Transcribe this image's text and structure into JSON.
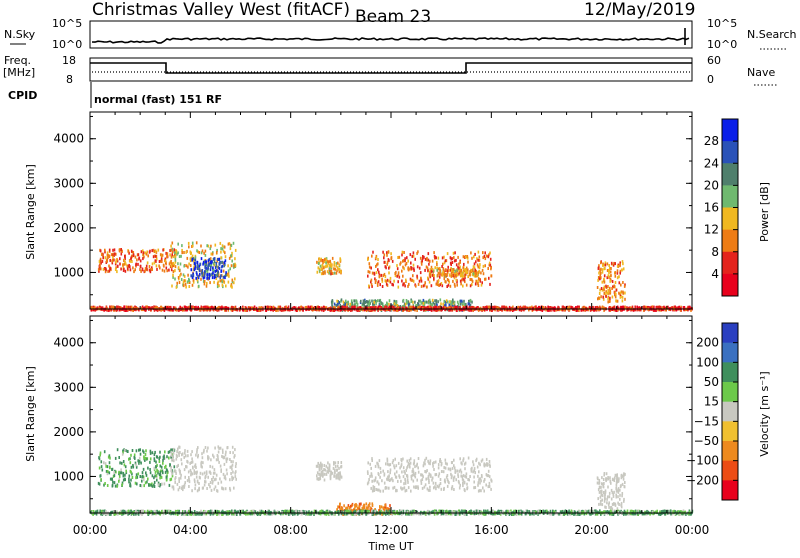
{
  "header": {
    "station": "Christmas Valley West (fitACF)",
    "beam": "Beam 23",
    "date": "12/May/2019"
  },
  "top_panels": {
    "nsky_label": "N.Sky",
    "nsky_ticks": [
      "10^5",
      "10^0"
    ],
    "nsearch_label": "N.Search",
    "nsearch_ticks": [
      "10^5",
      "10^0"
    ],
    "freq_label": "Freq.",
    "freq_unit": "[MHz]",
    "freq_ticks": [
      "18",
      "8"
    ],
    "nave_label": "Nave",
    "nave_ticks": [
      "60",
      "0"
    ],
    "cpid_label": "CPID",
    "cpid_text": "normal (fast) 151 RF"
  },
  "chart_data": [
    {
      "type": "heatmap",
      "name": "power",
      "ylabel": "Slant Range [km]",
      "yticks": [
        "4000",
        "3000",
        "2000",
        "1000"
      ],
      "ylim": [
        180,
        4600
      ],
      "colorbar_label": "Power [dB]",
      "colorbar_ticks": [
        "28",
        "24",
        "20",
        "16",
        "12",
        "8",
        "4"
      ],
      "colorbar_range": [
        0,
        32
      ],
      "colors": [
        "#0a1fe8",
        "#2a52b8",
        "#4f7f6c",
        "#6fb96f",
        "#f0b820",
        "#ee7c15",
        "#e4231c",
        "#e8001c"
      ],
      "regions": [
        {
          "t": [
            0.3,
            3.4
          ],
          "r": [
            1050,
            1550
          ],
          "level": 9
        },
        {
          "t": [
            3.2,
            5.8
          ],
          "r": [
            700,
            1700
          ],
          "level": 14
        },
        {
          "t": [
            4.0,
            5.4
          ],
          "r": [
            900,
            1350
          ],
          "level": 28
        },
        {
          "t": [
            9.0,
            10.0
          ],
          "r": [
            1000,
            1350
          ],
          "level": 12
        },
        {
          "t": [
            11.0,
            16.0
          ],
          "r": [
            700,
            1500
          ],
          "level": 9
        },
        {
          "t": [
            13.5,
            15.5
          ],
          "r": [
            950,
            1100
          ],
          "level": 12
        },
        {
          "t": [
            9.6,
            15.2
          ],
          "r": [
            180,
            420
          ],
          "level": 20
        },
        {
          "t": [
            20.2,
            21.3
          ],
          "r": [
            350,
            1300
          ],
          "level": 11
        },
        {
          "t": [
            0.0,
            24.0
          ],
          "r": [
            180,
            260
          ],
          "level": 6
        }
      ]
    },
    {
      "type": "heatmap",
      "name": "velocity",
      "xlabel": "Time UT",
      "xticks": [
        "00:00",
        "04:00",
        "08:00",
        "12:00",
        "16:00",
        "20:00",
        "00:00"
      ],
      "xlim": [
        0,
        24
      ],
      "ylabel": "Slant Range [km]",
      "yticks": [
        "4000",
        "3000",
        "2000",
        "1000"
      ],
      "ylim": [
        180,
        4600
      ],
      "colorbar_label": "Velocity [m s⁻¹]",
      "colorbar_ticks": [
        "200",
        "100",
        "50",
        "15",
        "−15",
        "−50",
        "−100",
        "−200"
      ],
      "colors": [
        "#2a3fc0",
        "#3a70c0",
        "#3f8f5c",
        "#6cc94a",
        "#c8c8c0",
        "#f0c030",
        "#ee8a1e",
        "#ec4c14",
        "#e8001c"
      ],
      "regions": [
        {
          "t": [
            0.3,
            3.4
          ],
          "r": [
            800,
            1650
          ],
          "velocity": 40
        },
        {
          "t": [
            3.2,
            5.8
          ],
          "r": [
            700,
            1700
          ],
          "velocity": 0
        },
        {
          "t": [
            9.0,
            10.0
          ],
          "r": [
            950,
            1350
          ],
          "velocity": 0
        },
        {
          "t": [
            11.0,
            16.0
          ],
          "r": [
            700,
            1450
          ],
          "velocity": 0
        },
        {
          "t": [
            9.8,
            12.0
          ],
          "r": [
            180,
            420
          ],
          "velocity": -60
        },
        {
          "t": [
            20.2,
            21.3
          ],
          "r": [
            300,
            1100
          ],
          "velocity": 0
        },
        {
          "t": [
            0.0,
            24.0
          ],
          "r": [
            180,
            260
          ],
          "velocity": 30
        }
      ]
    }
  ]
}
